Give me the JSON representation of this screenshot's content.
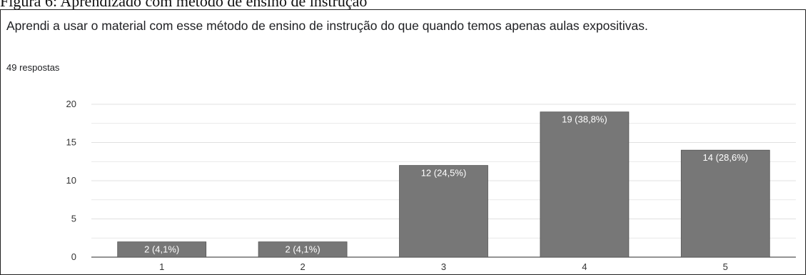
{
  "caption": "Figura 6: Aprendizado com método de ensino de instrução",
  "question": {
    "title": "Aprendi a usar o material com esse método de ensino de instrução do que quando temos apenas aulas expositivas.",
    "responses": "49 respostas"
  },
  "colors": {
    "bar": "#777777",
    "grid": "#e0e0e0",
    "axis": "#555555"
  },
  "chart_data": {
    "type": "bar",
    "categories": [
      "1",
      "2",
      "3",
      "4",
      "5"
    ],
    "values": [
      2,
      2,
      12,
      19,
      14
    ],
    "data_labels": [
      "2 (4,1%)",
      "2 (4,1%)",
      "12 (24,5%)",
      "19 (38,8%)",
      "14 (28,6%)"
    ],
    "y_ticks": [
      0,
      5,
      10,
      15,
      20
    ],
    "ylim": [
      0,
      20
    ],
    "grid": true
  }
}
